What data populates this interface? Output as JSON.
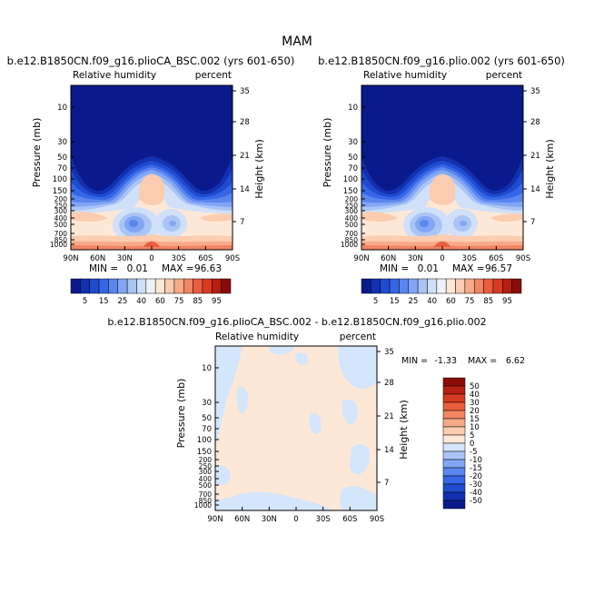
{
  "figure": {
    "title": "MAM"
  },
  "chart_data": [
    {
      "type": "heatmap",
      "panel": "top-left",
      "title": "b.e12.B1850CN.f09_g16.plioCA_BSC.002 (yrs 601-650)",
      "left_label": "Relative humidity",
      "right_label": "percent",
      "ylabel": "Pressure (mb)",
      "y2label": "Height (km)",
      "x_ticks": [
        "90N",
        "60N",
        "30N",
        "0",
        "30S",
        "60S",
        "90S"
      ],
      "y_ticks": [
        "10",
        "30",
        "50",
        "70",
        "100",
        "150",
        "200",
        "250",
        "300",
        "400",
        "500",
        "700",
        "850",
        "1000"
      ],
      "y2_ticks": [
        "35",
        "28",
        "21",
        "14",
        "7"
      ],
      "min_label": "MIN =",
      "min_value": "0.01",
      "max_label": "MAX =",
      "max_value": "96.63"
    },
    {
      "type": "heatmap",
      "panel": "top-right",
      "title": "b.e12.B1850CN.f09_g16.plio.002 (yrs 601-650)",
      "left_label": "Relative humidity",
      "right_label": "percent",
      "ylabel": "Pressure (mb)",
      "y2label": "Height (km)",
      "x_ticks": [
        "90N",
        "60N",
        "30N",
        "0",
        "30S",
        "60S",
        "90S"
      ],
      "y_ticks": [
        "10",
        "30",
        "50",
        "70",
        "100",
        "150",
        "200",
        "250",
        "300",
        "400",
        "500",
        "700",
        "850",
        "1000"
      ],
      "y2_ticks": [
        "35",
        "28",
        "21",
        "14",
        "7"
      ],
      "min_label": "MIN =",
      "min_value": "0.01",
      "max_label": "MAX =",
      "max_value": "96.57"
    },
    {
      "type": "heatmap",
      "panel": "bottom",
      "title": "b.e12.B1850CN.f09_g16.plioCA_BSC.002 - b.e12.B1850CN.f09_g16.plio.002",
      "left_label": "Relative humidity",
      "right_label": "percent",
      "ylabel": "Pressure (mb)",
      "y2label": "Height (km)",
      "x_ticks": [
        "90N",
        "60N",
        "30N",
        "0",
        "30S",
        "60S",
        "90S"
      ],
      "y_ticks": [
        "10",
        "30",
        "50",
        "70",
        "100",
        "150",
        "200",
        "250",
        "300",
        "400",
        "500",
        "700",
        "850",
        "1000"
      ],
      "y2_ticks": [
        "35",
        "28",
        "21",
        "14",
        "7"
      ],
      "min_label": "MIN =",
      "min_value": "-1.33",
      "max_label": "MAX =",
      "max_value": "6.62"
    }
  ],
  "colorbar_top": {
    "labels": [
      "5",
      "15",
      "25",
      "40",
      "60",
      "75",
      "85",
      "95"
    ],
    "colors": [
      "#0a1a8c",
      "#1230b0",
      "#1e4bd0",
      "#3566e6",
      "#5a86f0",
      "#82a6f4",
      "#aac4f6",
      "#d0e0f8",
      "#eef2f8",
      "#fde8d8",
      "#fbccb0",
      "#f7aa88",
      "#f28562",
      "#ea5e3e",
      "#d93a22",
      "#b81e12",
      "#8a0c08"
    ]
  },
  "colorbar_diff": {
    "labels": [
      "50",
      "40",
      "30",
      "20",
      "15",
      "10",
      "5",
      "0",
      "-5",
      "-10",
      "-15",
      "-20",
      "-30",
      "-40",
      "-50"
    ],
    "colors": [
      "#8a0c08",
      "#b81e12",
      "#d93a22",
      "#ea5e3e",
      "#f28562",
      "#f7aa88",
      "#fbccb0",
      "#fde8d8",
      "#d4e6fb",
      "#aac4f6",
      "#82a6f4",
      "#5a86f0",
      "#3566e6",
      "#1e4bd0",
      "#1230b0",
      "#0a1a8c"
    ]
  },
  "field_colors": {
    "dry": "#0a1a8c",
    "b1": "#1230b0",
    "b2": "#1e4bd0",
    "b3": "#3566e6",
    "b4": "#5a86f0",
    "b5": "#82a6f4",
    "b6": "#aac4f6",
    "b7": "#d0e0f8",
    "p1": "#fde8d8",
    "p2": "#fbccb0",
    "p3": "#f7aa88",
    "p4": "#f28562",
    "p5": "#ea5e3e",
    "diff_bg": "#fde8d8",
    "diff_neg": "#d4e6fb"
  }
}
